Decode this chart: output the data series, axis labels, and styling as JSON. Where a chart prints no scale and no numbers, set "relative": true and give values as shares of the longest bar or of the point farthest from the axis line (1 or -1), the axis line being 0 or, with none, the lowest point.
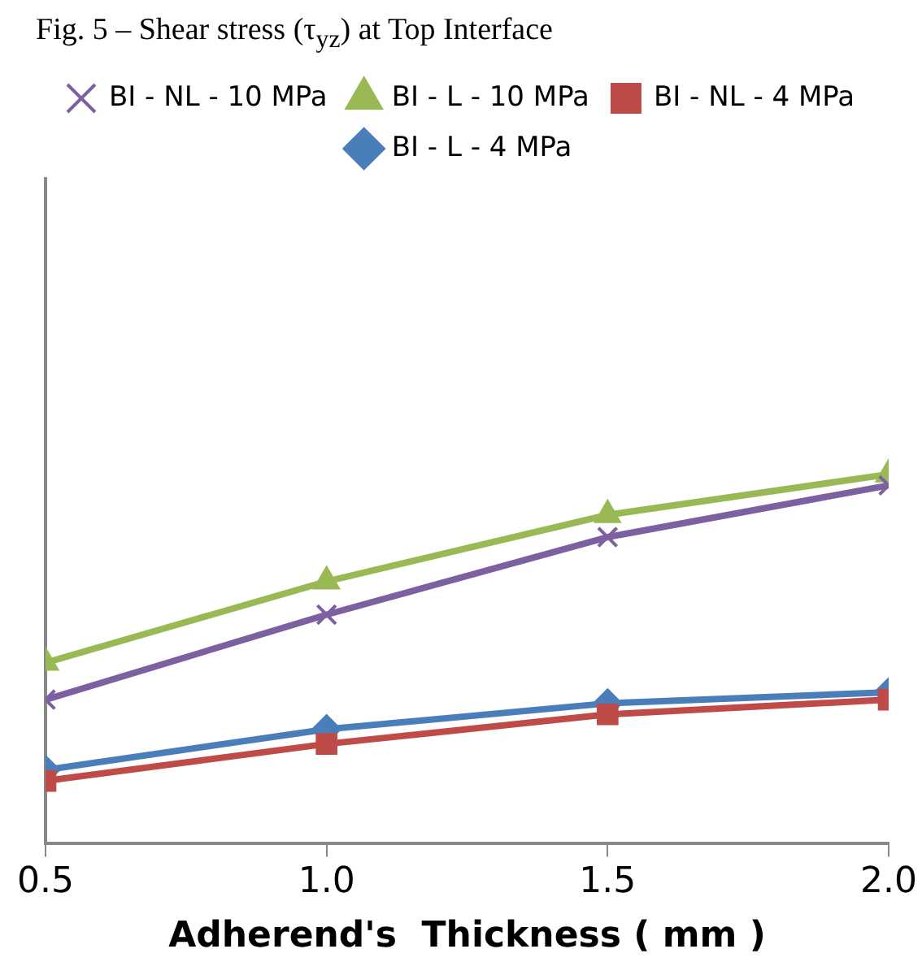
{
  "chart_data": {
    "type": "line",
    "title": "Fig. 5 – Shear stress (τ$_{yz}$) at Top Interface",
    "xlabel": "Adherend's  Thickness ( mm )",
    "relative": true,
    "x": [
      0.5,
      1.0,
      1.5,
      2.0
    ],
    "xlim": [
      0.5,
      2.0
    ],
    "xticks": [
      {
        "value": 0.5,
        "label": "0.5"
      },
      {
        "value": 1.0,
        "label": "1.0"
      },
      {
        "value": 1.5,
        "label": "1.5"
      },
      {
        "value": 2.0,
        "label": "2.0"
      }
    ],
    "tick_labels": "x",
    "grid": false,
    "legend": "top",
    "line_style": "solid",
    "series": [
      {
        "name": "BI - L - 4 MPa",
        "color": "#4a7ebb",
        "marker": "diamond",
        "values": [
          0.2,
          0.31,
          0.38,
          0.41
        ]
      },
      {
        "name": "BI - NL - 4 MPa",
        "color": "#be4b48",
        "marker": "square",
        "values": [
          0.17,
          0.27,
          0.35,
          0.39
        ]
      },
      {
        "name": "BI - L - 10 MPa",
        "color": "#98b954",
        "marker": "triangle",
        "values": [
          0.49,
          0.71,
          0.89,
          1
        ]
      },
      {
        "name": "BI - NL - 10 MPa",
        "color": "#7d60a0",
        "marker": "cross",
        "values": [
          0.39,
          0.62,
          0.83,
          0.97
        ]
      }
    ]
  }
}
